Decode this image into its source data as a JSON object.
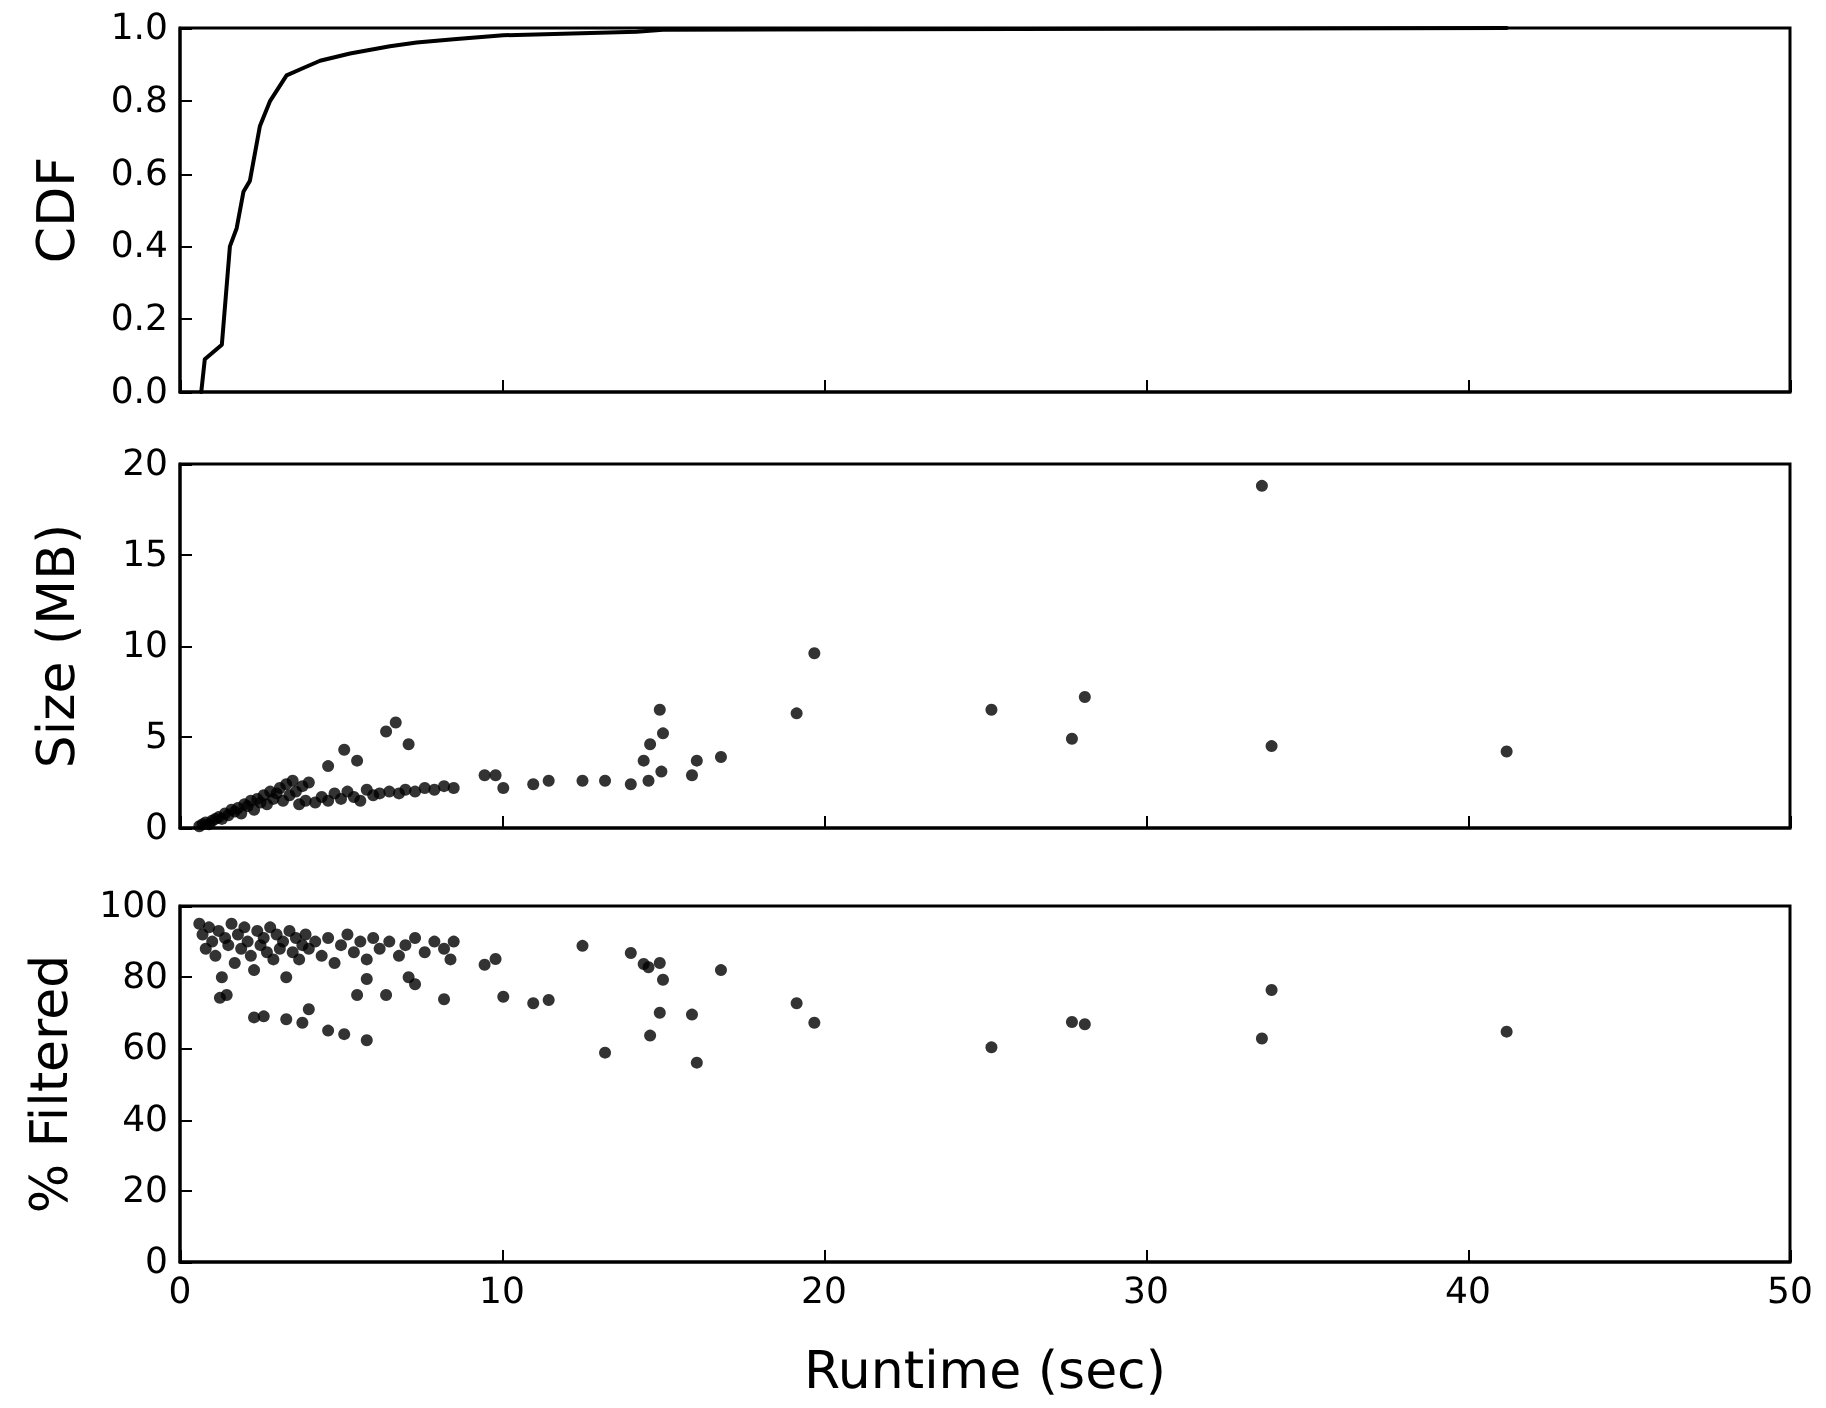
{
  "chart_data": [
    {
      "type": "line",
      "ylabel": "CDF",
      "xlim": [
        0,
        50
      ],
      "xticks": [
        0,
        10,
        20,
        30,
        40,
        50
      ],
      "ylim": [
        0,
        1
      ],
      "yticks": [
        {
          "value": 0,
          "label": "0.0"
        },
        {
          "value": 0.2,
          "label": "0.2"
        },
        {
          "value": 0.4,
          "label": "0.4"
        },
        {
          "value": 0.6,
          "label": "0.6"
        },
        {
          "value": 0.8,
          "label": "0.8"
        },
        {
          "value": 1,
          "label": "1.0"
        }
      ],
      "tick_labels": "y",
      "line_style": "solid",
      "series": [
        {
          "color": "#000000",
          "x": [
            0.66,
            0.77,
            1.3,
            1.55,
            1.76,
            1.97,
            2.17,
            2.48,
            2.8,
            3.31,
            3.83,
            4.35,
            5.28,
            6.52,
            7.35,
            8.59,
            10.04,
            14.18,
            15.0,
            41.2
          ],
          "values": [
            0,
            0.09,
            0.13,
            0.4,
            0.45,
            0.55,
            0.58,
            0.73,
            0.8,
            0.87,
            0.89,
            0.91,
            0.93,
            0.95,
            0.96,
            0.97,
            0.98,
            0.99,
            0.995,
            1.0
          ]
        }
      ]
    },
    {
      "type": "scatter",
      "ylabel": "Size (MB)",
      "xlim": [
        0,
        50
      ],
      "xticks": [
        0,
        10,
        20,
        30,
        40,
        50
      ],
      "ylim": [
        0,
        20
      ],
      "yticks": [
        0,
        5,
        10,
        15,
        20
      ],
      "tick_labels": "y",
      "marker": "circle",
      "series": [
        {
          "color": "#000000",
          "x": [
            0.6,
            0.7,
            0.8,
            0.9,
            1.0,
            1.1,
            1.2,
            1.3,
            1.4,
            1.5,
            1.6,
            1.7,
            1.8,
            1.9,
            2.0,
            2.1,
            2.2,
            2.3,
            2.4,
            2.5,
            2.6,
            2.7,
            2.8,
            2.9,
            3.0,
            3.1,
            3.2,
            3.3,
            3.4,
            3.5,
            3.6,
            3.7,
            3.8,
            3.9,
            4.0,
            4.2,
            4.4,
            4.6,
            4.8,
            5.0,
            5.2,
            5.4,
            5.6,
            5.8,
            6.0,
            6.2,
            6.5,
            6.8,
            7.0,
            7.3,
            7.6,
            7.9,
            8.2,
            8.5,
            7.1,
            6.7,
            6.4,
            5.1,
            4.6,
            5.5,
            9.46,
            9.8,
            10.04,
            10.97,
            11.45,
            12.5,
            13.2,
            14.0,
            14.4,
            14.55,
            14.6,
            14.9,
            15.0,
            14.95,
            15.9,
            16.05,
            16.8,
            19.15,
            19.7,
            25.2,
            27.7,
            28.1,
            33.6,
            33.9,
            41.2
          ],
          "values": [
            0.1,
            0.2,
            0.3,
            0.2,
            0.4,
            0.5,
            0.6,
            0.5,
            0.8,
            0.7,
            1.0,
            0.9,
            1.1,
            0.8,
            1.3,
            1.2,
            1.5,
            1.0,
            1.6,
            1.4,
            1.8,
            1.3,
            2.0,
            1.6,
            1.9,
            2.2,
            1.5,
            2.4,
            1.8,
            2.6,
            2.0,
            1.3,
            2.3,
            1.5,
            2.5,
            1.4,
            1.7,
            1.5,
            1.9,
            1.6,
            2.0,
            1.7,
            1.5,
            2.1,
            1.8,
            1.9,
            2.0,
            1.9,
            2.1,
            2.0,
            2.2,
            2.1,
            2.3,
            2.2,
            4.6,
            5.8,
            5.3,
            4.3,
            3.4,
            3.7,
            2.9,
            2.9,
            2.2,
            2.4,
            2.6,
            2.6,
            2.6,
            2.4,
            3.7,
            2.6,
            4.6,
            6.5,
            5.2,
            3.1,
            2.9,
            3.7,
            3.9,
            6.3,
            9.6,
            6.5,
            4.9,
            7.2,
            18.8,
            4.5,
            4.2
          ]
        }
      ]
    },
    {
      "type": "scatter",
      "xlabel": "Runtime (sec)",
      "ylabel": "% Filtered",
      "xlim": [
        0,
        50
      ],
      "xticks": [
        0,
        10,
        20,
        30,
        40,
        50
      ],
      "ylim": [
        0,
        100
      ],
      "yticks": [
        0,
        20,
        40,
        60,
        80,
        100
      ],
      "marker": "circle",
      "series": [
        {
          "color": "#000000",
          "x": [
            0.6,
            0.7,
            0.8,
            0.9,
            1.0,
            1.1,
            1.2,
            1.3,
            1.4,
            1.5,
            1.6,
            1.7,
            1.8,
            1.9,
            2.0,
            2.1,
            2.2,
            2.3,
            2.4,
            2.5,
            2.6,
            2.7,
            2.8,
            2.9,
            3.0,
            3.1,
            3.2,
            3.3,
            3.4,
            3.5,
            3.6,
            3.7,
            3.8,
            3.9,
            4.0,
            4.2,
            4.4,
            4.6,
            4.8,
            5.0,
            5.2,
            5.4,
            5.6,
            5.8,
            6.0,
            6.2,
            6.5,
            6.8,
            7.0,
            7.3,
            7.6,
            7.9,
            8.2,
            8.5,
            8.4,
            8.2,
            5.8,
            4.6,
            5.1,
            3.8,
            3.3,
            2.3,
            2.6,
            1.24,
            1.45,
            4.0,
            5.5,
            6.4,
            7.1,
            7.3,
            5.8,
            9.46,
            9.8,
            10.04,
            10.97,
            11.45,
            12.5,
            13.2,
            14.0,
            14.4,
            14.55,
            14.6,
            14.9,
            15.0,
            14.9,
            15.9,
            16.05,
            16.8,
            19.15,
            19.7,
            25.2,
            27.7,
            28.1,
            33.6,
            33.9,
            41.2
          ],
          "values": [
            95,
            92,
            88,
            94,
            90,
            86,
            93,
            80,
            91,
            89,
            95,
            84,
            92,
            88,
            94,
            90,
            86,
            82,
            93,
            89,
            91,
            87,
            94,
            85,
            92,
            88,
            90,
            80,
            93,
            87,
            91,
            85,
            89,
            92,
            88,
            90,
            86,
            91,
            84,
            89,
            92,
            87,
            90,
            85,
            91,
            88,
            90,
            86,
            89,
            91,
            87,
            90,
            88,
            90,
            85,
            73.8,
            62.3,
            65,
            64,
            67.2,
            68.2,
            68.7,
            69,
            74.2,
            75,
            71,
            75,
            75,
            80,
            78,
            79.5,
            83.5,
            85.1,
            74.5,
            72.7,
            73.6,
            88.8,
            58.8,
            86.8,
            83.7,
            82.8,
            63.6,
            84,
            79.3,
            70,
            69.5,
            56,
            82,
            72.7,
            67.2,
            60.3,
            67.4,
            66.8,
            62.8,
            76.4,
            64.7
          ]
        }
      ]
    }
  ]
}
